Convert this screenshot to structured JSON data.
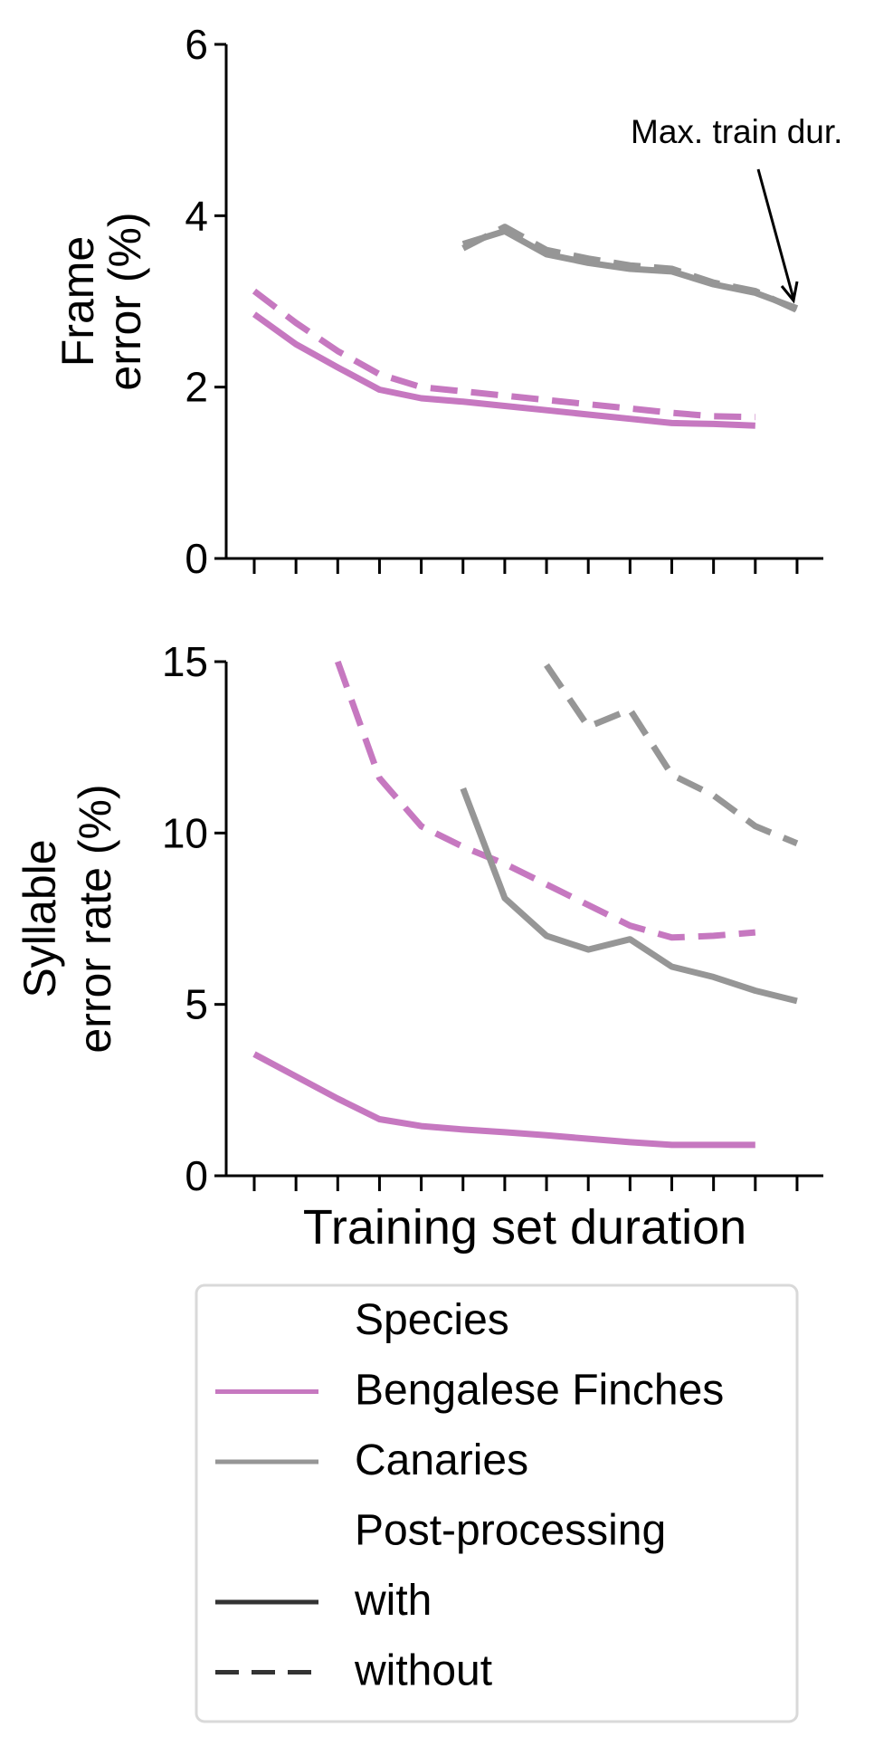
{
  "chart_data": [
    {
      "type": "line",
      "ylabel": [
        "Frame",
        "error (%)"
      ],
      "ylim": [
        0,
        6
      ],
      "yticks": [
        "0",
        "2",
        "4",
        "6"
      ],
      "xlim": [
        0.5,
        14.6
      ],
      "x_tick_count": 14,
      "annotation": "Max. train dur.",
      "series": [
        {
          "species": "Bengalese Finches",
          "post_processing": "with",
          "color": "#c678c0",
          "dash": "solid",
          "x": [
            1,
            2,
            3,
            4,
            5,
            6,
            7,
            8,
            9,
            10,
            11,
            12,
            13
          ],
          "values": [
            2.85,
            2.5,
            2.23,
            1.97,
            1.87,
            1.83,
            1.78,
            1.73,
            1.68,
            1.63,
            1.58,
            1.57,
            1.55
          ]
        },
        {
          "species": "Bengalese Finches",
          "post_processing": "without",
          "color": "#c678c0",
          "dash": "dashed",
          "x": [
            1,
            2,
            3,
            4,
            5,
            6,
            7,
            8,
            9,
            10,
            11,
            12,
            13
          ],
          "values": [
            3.12,
            2.75,
            2.42,
            2.15,
            2.0,
            1.95,
            1.9,
            1.85,
            1.8,
            1.75,
            1.7,
            1.66,
            1.65
          ]
        },
        {
          "species": "Canaries",
          "post_processing": "with",
          "color": "#969696",
          "dash": "solid",
          "x": [
            6,
            7,
            8,
            9,
            10,
            11,
            12,
            13,
            14
          ],
          "values": [
            3.67,
            3.82,
            3.55,
            3.45,
            3.38,
            3.35,
            3.2,
            3.1,
            2.92
          ]
        },
        {
          "species": "Canaries",
          "post_processing": "without",
          "color": "#969696",
          "dash": "dashed",
          "x": [
            6,
            7,
            8,
            9,
            10,
            11,
            12,
            13,
            14
          ],
          "values": [
            3.62,
            3.87,
            3.6,
            3.5,
            3.42,
            3.38,
            3.22,
            3.12,
            2.9
          ]
        }
      ]
    },
    {
      "type": "line",
      "ylabel": [
        "Syllable",
        "error rate (%)"
      ],
      "xlabel": "Training set duration",
      "ylim": [
        0,
        15
      ],
      "yticks": [
        "0",
        "5",
        "10",
        "15"
      ],
      "xlim": [
        0.5,
        14.6
      ],
      "x_tick_count": 14,
      "series": [
        {
          "species": "Bengalese Finches",
          "post_processing": "with",
          "color": "#c678c0",
          "dash": "solid",
          "x": [
            1,
            2,
            3,
            4,
            5,
            6,
            7,
            8,
            9,
            10,
            11,
            12,
            13
          ],
          "values": [
            3.55,
            2.9,
            2.25,
            1.65,
            1.45,
            1.35,
            1.27,
            1.18,
            1.08,
            0.98,
            0.9,
            0.9,
            0.9
          ]
        },
        {
          "species": "Bengalese Finches",
          "post_processing": "without",
          "color": "#c678c0",
          "dash": "dashed",
          "x": [
            3,
            4,
            5,
            6,
            7,
            8,
            9,
            10,
            11,
            12,
            13
          ],
          "values": [
            15.0,
            11.6,
            10.2,
            9.6,
            9.1,
            8.5,
            7.9,
            7.3,
            6.95,
            7.0,
            7.1
          ]
        },
        {
          "species": "Canaries",
          "post_processing": "with",
          "color": "#969696",
          "dash": "solid",
          "x": [
            6,
            7,
            8,
            9,
            10,
            11,
            12,
            13,
            14
          ],
          "values": [
            11.3,
            8.1,
            7.0,
            6.6,
            6.9,
            6.1,
            5.8,
            5.4,
            5.1
          ]
        },
        {
          "species": "Canaries",
          "post_processing": "without",
          "color": "#969696",
          "dash": "dashed",
          "x": [
            8,
            9,
            10,
            11,
            12,
            13,
            14
          ],
          "values": [
            14.9,
            13.1,
            13.6,
            11.7,
            11.1,
            10.2,
            9.7
          ]
        }
      ]
    }
  ],
  "legend": {
    "placement": "bottom",
    "items": [
      {
        "label": "Species",
        "kind": "header"
      },
      {
        "label": "Bengalese Finches",
        "kind": "line",
        "color": "#c678c0",
        "dash": "solid"
      },
      {
        "label": "Canaries",
        "kind": "line",
        "color": "#969696",
        "dash": "solid"
      },
      {
        "label": "Post-processing",
        "kind": "header"
      },
      {
        "label": "with",
        "kind": "line",
        "color": "#333333",
        "dash": "solid"
      },
      {
        "label": "without",
        "kind": "line",
        "color": "#333333",
        "dash": "dashed"
      }
    ]
  }
}
